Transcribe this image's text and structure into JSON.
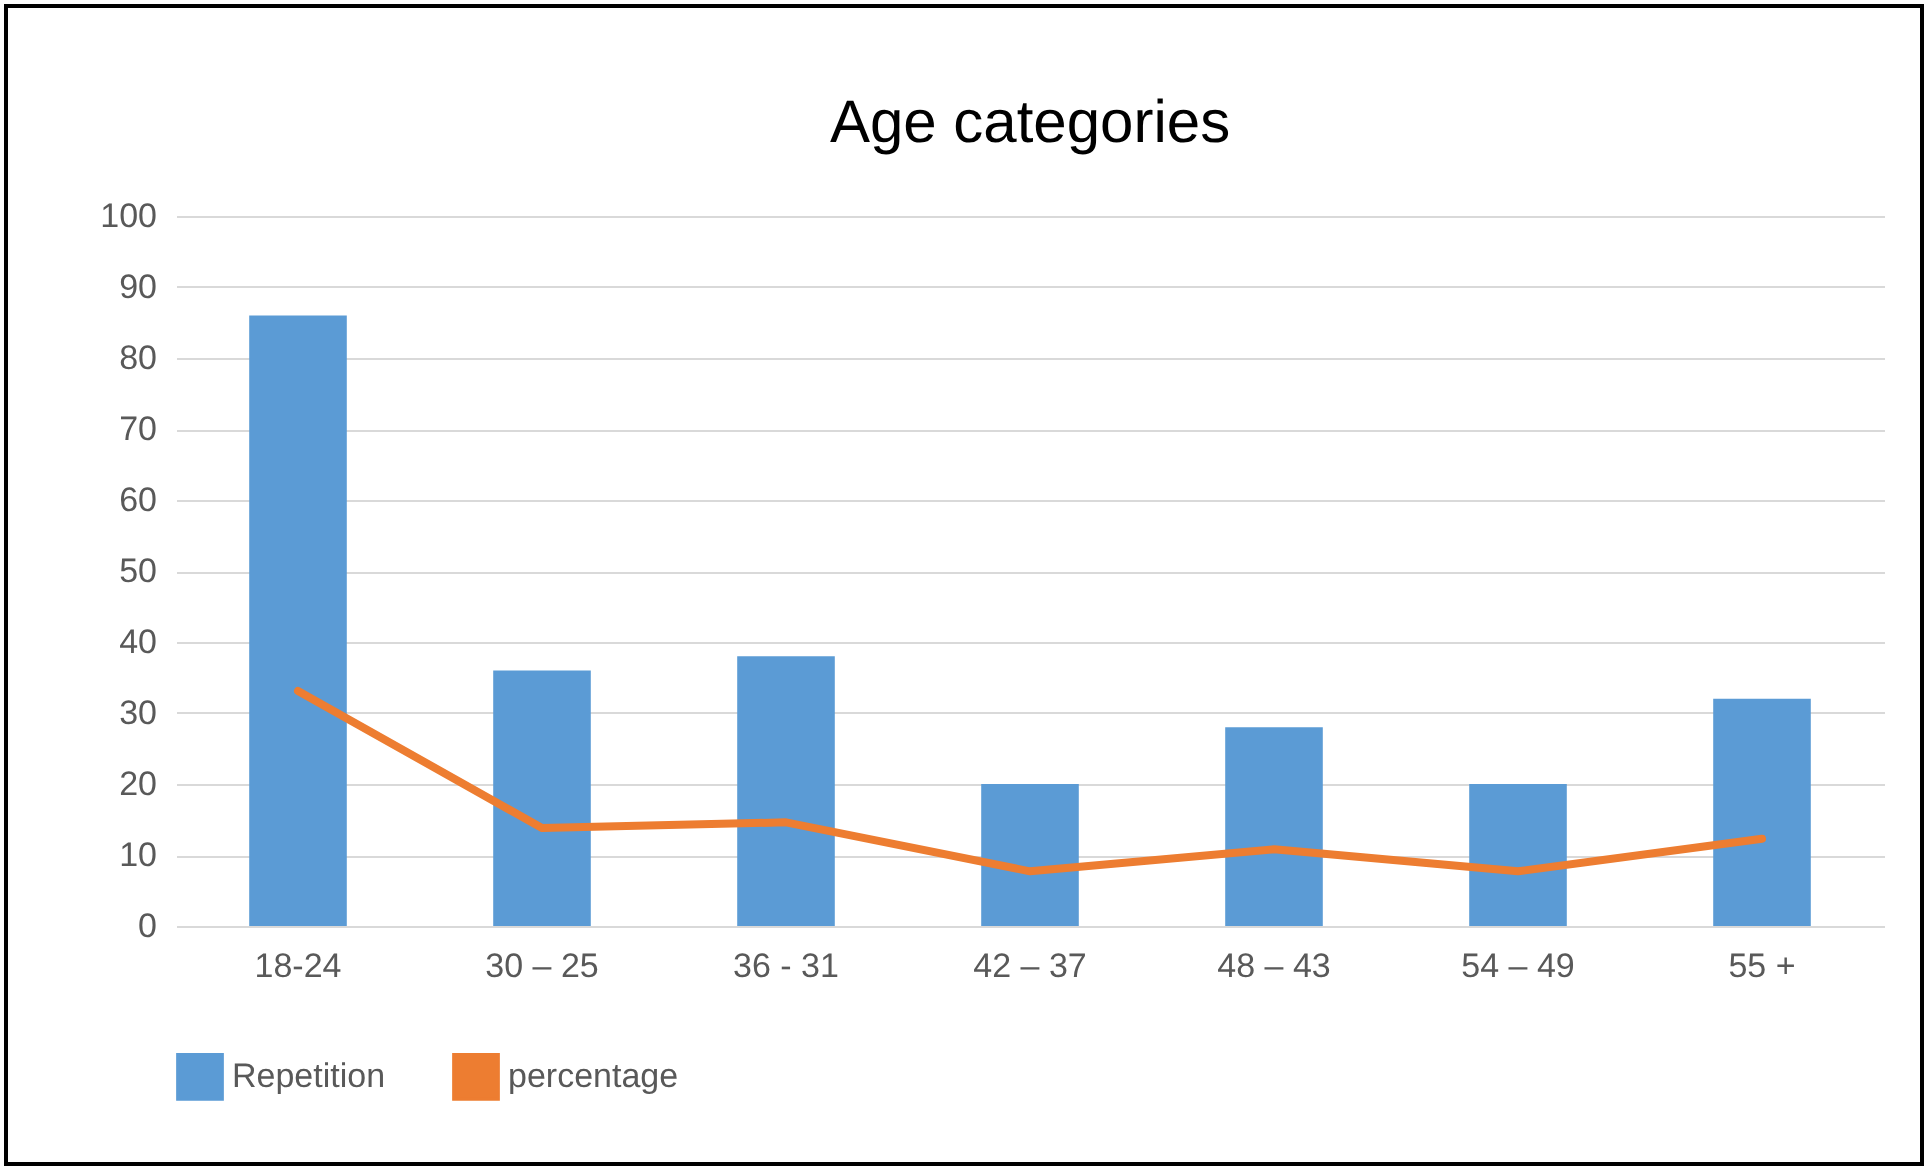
{
  "chart_data": {
    "type": "bar",
    "title": "Age categories",
    "categories": [
      "18-24",
      "30 – 25",
      "36 - 31",
      "42 – 37",
      "48 – 43",
      "54 – 49",
      "55 +"
    ],
    "series": [
      {
        "name": "Repetition",
        "color": "#5b9bd5",
        "values": [
          86,
          36,
          38,
          20,
          28,
          20,
          32
        ]
      },
      {
        "name": "percentage",
        "type": "line",
        "color": "#ed7d31",
        "values": [
          33.1,
          13.8,
          14.6,
          7.7,
          10.8,
          7.7,
          12.3
        ]
      }
    ],
    "ylim": [
      0,
      100
    ],
    "yticks": [
      0,
      10,
      20,
      30,
      40,
      50,
      60,
      70,
      80,
      90,
      100
    ],
    "grid": "y",
    "legend": "bottom",
    "marker": "none",
    "line_style": "solid"
  }
}
